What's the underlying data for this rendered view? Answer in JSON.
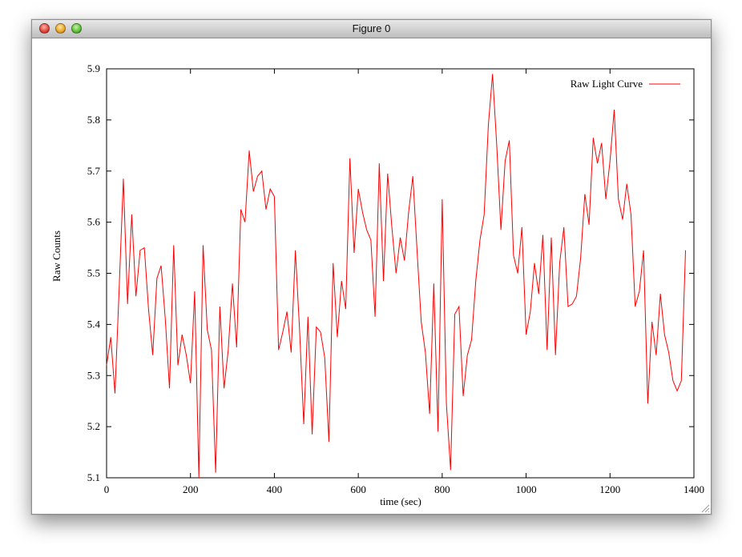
{
  "window": {
    "title": "Figure 0"
  },
  "chart_data": {
    "type": "line",
    "xlabel": "time (sec)",
    "ylabel": "Raw Counts",
    "xlim": [
      0,
      1400
    ],
    "ylim": [
      5.1,
      5.9
    ],
    "xticks": [
      0,
      200,
      400,
      600,
      800,
      1000,
      1200,
      1400
    ],
    "yticks": [
      5.1,
      5.2,
      5.3,
      5.4,
      5.5,
      5.6,
      5.7,
      5.8,
      5.9
    ],
    "legend_position": "top-right",
    "grid": false,
    "series": [
      {
        "name": "Raw Light Curve",
        "color": "#ff0000",
        "x": [
          0,
          10,
          20,
          30,
          40,
          50,
          60,
          70,
          80,
          90,
          100,
          110,
          120,
          130,
          140,
          150,
          160,
          170,
          180,
          190,
          200,
          210,
          220,
          230,
          240,
          250,
          260,
          270,
          280,
          290,
          300,
          310,
          320,
          330,
          340,
          350,
          360,
          370,
          380,
          390,
          400,
          410,
          420,
          430,
          440,
          450,
          460,
          470,
          480,
          490,
          500,
          510,
          520,
          530,
          540,
          550,
          560,
          570,
          580,
          590,
          600,
          610,
          620,
          630,
          640,
          650,
          660,
          670,
          680,
          690,
          700,
          710,
          720,
          730,
          740,
          750,
          760,
          770,
          780,
          790,
          800,
          810,
          820,
          830,
          840,
          850,
          860,
          870,
          880,
          890,
          900,
          910,
          920,
          930,
          940,
          950,
          960,
          970,
          980,
          990,
          1000,
          1010,
          1020,
          1030,
          1040,
          1050,
          1060,
          1070,
          1080,
          1090,
          1100,
          1110,
          1120,
          1130,
          1140,
          1150,
          1160,
          1170,
          1180,
          1190,
          1200,
          1210,
          1220,
          1230,
          1240,
          1250,
          1260,
          1270,
          1280,
          1290,
          1300,
          1310,
          1320,
          1330,
          1340,
          1350,
          1360,
          1370,
          1380
        ],
        "values": [
          5.32,
          5.375,
          5.265,
          5.47,
          5.685,
          5.44,
          5.615,
          5.455,
          5.545,
          5.55,
          5.43,
          5.34,
          5.49,
          5.515,
          5.41,
          5.275,
          5.555,
          5.32,
          5.38,
          5.34,
          5.285,
          5.465,
          5.1,
          5.555,
          5.39,
          5.35,
          5.11,
          5.435,
          5.275,
          5.35,
          5.48,
          5.355,
          5.625,
          5.6,
          5.74,
          5.66,
          5.69,
          5.7,
          5.625,
          5.665,
          5.65,
          5.35,
          5.385,
          5.425,
          5.345,
          5.545,
          5.39,
          5.205,
          5.415,
          5.185,
          5.395,
          5.385,
          5.335,
          5.17,
          5.52,
          5.375,
          5.485,
          5.43,
          5.725,
          5.54,
          5.665,
          5.62,
          5.585,
          5.565,
          5.415,
          5.715,
          5.485,
          5.695,
          5.59,
          5.5,
          5.57,
          5.525,
          5.62,
          5.69,
          5.545,
          5.405,
          5.345,
          5.225,
          5.48,
          5.19,
          5.645,
          5.245,
          5.115,
          5.42,
          5.435,
          5.26,
          5.34,
          5.37,
          5.485,
          5.565,
          5.615,
          5.79,
          5.89,
          5.75,
          5.585,
          5.72,
          5.76,
          5.535,
          5.5,
          5.59,
          5.38,
          5.425,
          5.52,
          5.46,
          5.575,
          5.35,
          5.57,
          5.34,
          5.52,
          5.59,
          5.435,
          5.44,
          5.455,
          5.53,
          5.655,
          5.595,
          5.765,
          5.715,
          5.755,
          5.645,
          5.72,
          5.82,
          5.645,
          5.605,
          5.675,
          5.615,
          5.435,
          5.465,
          5.545,
          5.245,
          5.405,
          5.34,
          5.46,
          5.38,
          5.345,
          5.29,
          5.27,
          5.29,
          5.545
        ]
      }
    ]
  }
}
